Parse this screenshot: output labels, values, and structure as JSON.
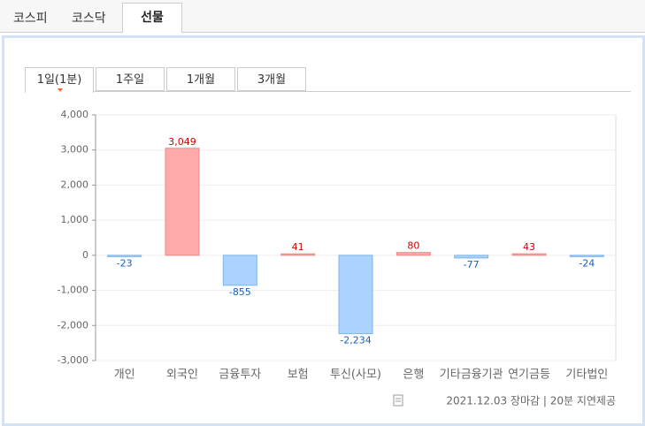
{
  "tabs": [
    "코스피",
    "코스닥",
    "선물"
  ],
  "period_tabs": [
    "1일(1분)",
    "1주일",
    "1개월",
    "3개월"
  ],
  "footer": "2021.12.03 장마감 | 20분 지연제공",
  "chart_data": {
    "type": "bar",
    "categories": [
      "개인",
      "외국인",
      "금융투자",
      "보험",
      "투신(사모)",
      "은행",
      "기타금융기관",
      "연기금등",
      "기타법인"
    ],
    "values": [
      -23,
      3049,
      -855,
      41,
      -2234,
      80,
      -77,
      43,
      -24
    ],
    "value_labels": [
      "-23",
      "3,049",
      "-855",
      "41",
      "-2,234",
      "80",
      "-77",
      "43",
      "-24"
    ],
    "colors": {
      "positive": "#ffaaaa",
      "negative": "#aad4ff"
    },
    "ylim": [
      -3000,
      4000
    ],
    "yticks": [
      {
        "value": -3000,
        "label": "-3,000"
      },
      {
        "value": -2000,
        "label": "-2,000"
      },
      {
        "value": -1000,
        "label": "-1,000"
      },
      0,
      {
        "value": 1000,
        "label": "1,000"
      },
      {
        "value": 2000,
        "label": "2,000"
      },
      {
        "value": 3000,
        "label": "3,000"
      },
      {
        "value": 4000,
        "label": "4,000"
      }
    ],
    "grid": true
  }
}
